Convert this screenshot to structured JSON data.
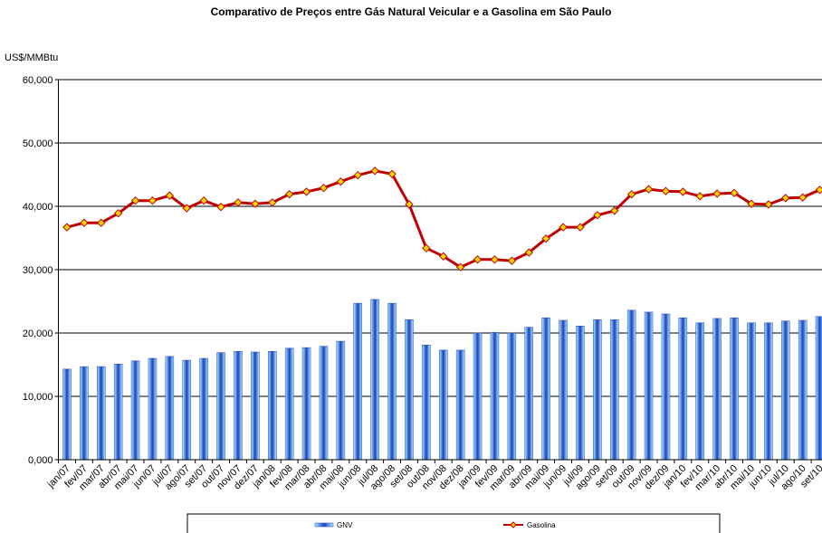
{
  "chart_data": {
    "type": "bar_line",
    "title": "Comparativo de Preços entre Gás Natural Veicular e a Gasolina em São Paulo",
    "y_axis_label": "US$/MMBtu",
    "categories": [
      "jan/07",
      "fev/07",
      "mar/07",
      "abr/07",
      "mai/07",
      "jun/07",
      "jul/07",
      "ago/07",
      "set/07",
      "out/07",
      "nov/07",
      "dez/07",
      "jan/08",
      "fev/08",
      "mar/08",
      "abr/08",
      "mai/08",
      "jun/08",
      "jul/08",
      "ago/08",
      "set/08",
      "out/08",
      "nov/08",
      "dez/08",
      "jan/09",
      "fev/09",
      "mar/09",
      "abr/09",
      "mai/09",
      "jun/09",
      "jul/09",
      "ago/09",
      "set/09",
      "out/09",
      "nov/09",
      "dez/09",
      "jan/10",
      "fev/10",
      "mar/10",
      "abr/10",
      "mai/10",
      "jun/10",
      "jul/10",
      "ago/10",
      "set/10"
    ],
    "series": [
      {
        "name": "GNV",
        "type": "bar",
        "color": "#1f3fbf",
        "values": [
          14.3,
          14.7,
          14.7,
          15.1,
          15.6,
          16.0,
          16.3,
          15.7,
          16.0,
          16.9,
          17.1,
          17.0,
          17.1,
          17.6,
          17.7,
          17.9,
          18.7,
          24.7,
          25.3,
          24.7,
          22.1,
          18.1,
          17.3,
          17.3,
          20.0,
          20.1,
          20.0,
          20.9,
          22.4,
          22.0,
          21.1,
          22.1,
          22.1,
          23.6,
          23.3,
          23.0,
          22.4,
          21.6,
          22.3,
          22.4,
          21.6,
          21.6,
          21.9,
          22.0,
          22.6
        ]
      },
      {
        "name": "Gasolina",
        "type": "line",
        "color": "#c00000",
        "marker_color": "#ffd700",
        "values": [
          36.7,
          37.4,
          37.4,
          38.9,
          40.9,
          40.9,
          41.7,
          39.7,
          40.9,
          39.9,
          40.6,
          40.4,
          40.6,
          41.9,
          42.3,
          42.9,
          43.9,
          44.9,
          45.6,
          45.1,
          40.3,
          33.4,
          32.1,
          30.4,
          31.6,
          31.6,
          31.4,
          32.7,
          34.9,
          36.7,
          36.7,
          38.6,
          39.3,
          41.9,
          42.7,
          42.4,
          42.3,
          41.6,
          42.0,
          42.1,
          40.4,
          40.3,
          41.3,
          41.4,
          42.6
        ]
      }
    ],
    "ylim": [
      0,
      60
    ],
    "yticks": [
      {
        "value": 0,
        "label": "0,000"
      },
      {
        "value": 10,
        "label": "10,000"
      },
      {
        "value": 20,
        "label": "20,000"
      },
      {
        "value": 30,
        "label": "30,000"
      },
      {
        "value": 40,
        "label": "40,000"
      },
      {
        "value": 50,
        "label": "50,000"
      },
      {
        "value": 60,
        "label": "60,000"
      }
    ],
    "grid": true,
    "legend": "bottom"
  }
}
